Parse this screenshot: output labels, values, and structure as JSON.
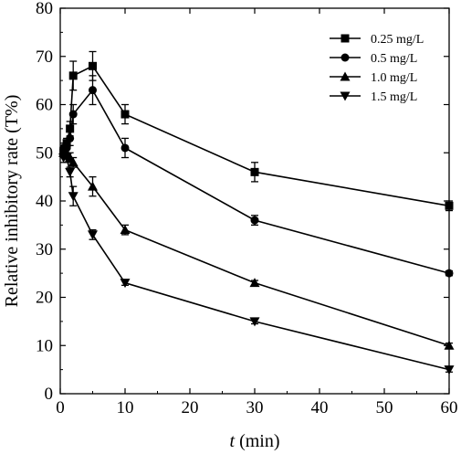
{
  "chart_data": {
    "type": "line",
    "xlabel_italic": "t",
    "xlabel_rest": " (min)",
    "ylabel": "Relative inhibitory rate (T%)",
    "xlim": [
      0,
      60
    ],
    "ylim": [
      0,
      80
    ],
    "xticks": [
      "0",
      "10",
      "20",
      "30",
      "40",
      "50",
      "60"
    ],
    "yticks": [
      "0",
      "10",
      "20",
      "30",
      "40",
      "50",
      "60",
      "70",
      "80"
    ],
    "legend_position": "top-right",
    "grid": false,
    "series": [
      {
        "name": "0.25 mg/L",
        "marker": "square",
        "x": [
          0.5,
          1,
          1.5,
          2,
          5,
          10,
          30,
          60
        ],
        "y": [
          50,
          52,
          55,
          66,
          68,
          58,
          46,
          39
        ],
        "err": [
          1,
          1,
          1.5,
          3,
          3,
          2,
          2,
          1
        ]
      },
      {
        "name": "0.5 mg/L",
        "marker": "circle",
        "x": [
          0.5,
          1,
          1.5,
          2,
          5,
          10,
          30,
          60
        ],
        "y": [
          51,
          51,
          53,
          58,
          63,
          51,
          36,
          25
        ],
        "err": [
          1,
          1,
          1.5,
          2,
          3,
          2,
          1,
          0.5
        ]
      },
      {
        "name": "1.0 mg/L",
        "marker": "triangle-up",
        "x": [
          0.5,
          1,
          1.5,
          2,
          5,
          10,
          30,
          60
        ],
        "y": [
          50,
          50,
          49,
          48,
          43,
          34,
          23,
          10
        ],
        "err": [
          1,
          1,
          1,
          1,
          2,
          1,
          0.5,
          0.5
        ]
      },
      {
        "name": "1.5 mg/L",
        "marker": "triangle-down",
        "x": [
          0.5,
          1,
          1.5,
          2,
          5,
          10,
          30,
          60
        ],
        "y": [
          49,
          49,
          46,
          41,
          33,
          23,
          15,
          5
        ],
        "err": [
          1,
          1,
          1,
          2,
          1,
          0.5,
          0.5,
          0.5
        ]
      }
    ]
  }
}
